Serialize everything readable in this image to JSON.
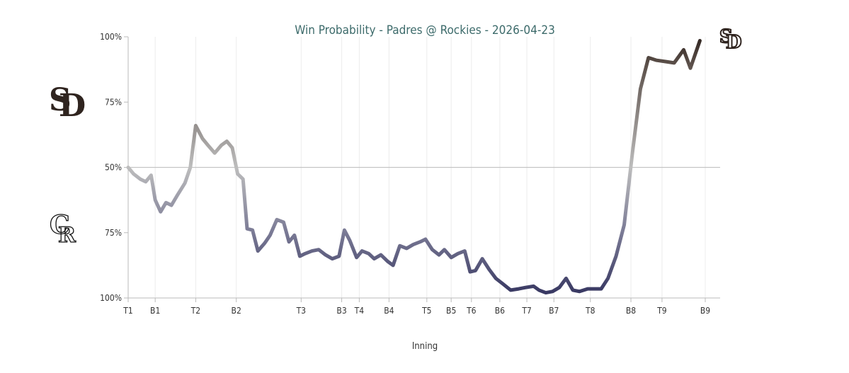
{
  "chart_data": {
    "type": "line",
    "title": "Win Probability - Padres @ Rockies - 2026-04-23",
    "xlabel": "Inning",
    "ylabel": "",
    "grid": true,
    "y_tick_labels": [
      "100%",
      "75%",
      "50%",
      "75%",
      "100%"
    ],
    "x_tick_labels": [
      "T1",
      "B1",
      "T2",
      "B2",
      "T3",
      "B3",
      "T4",
      "B4",
      "T5",
      "B5",
      "T6",
      "B6",
      "T7",
      "B7",
      "T8",
      "B8",
      "T9",
      "B9"
    ],
    "team_labels": {
      "top": "Padres",
      "bottom": "Rockies"
    },
    "logo_text": {
      "top": "SD",
      "bottom": "CR"
    },
    "colors": {
      "title": "#3d6b6b",
      "line_start": "#bdbdbd",
      "line_mid": "#7a7a95",
      "line_low": "#33335e",
      "line_end": "#2f241f",
      "padres_brown": "#2f241f",
      "rockies_black": "#111111"
    },
    "series": [
      {
        "values": [
          [
            0,
            50
          ],
          [
            0.2,
            47.5
          ],
          [
            0.45,
            45.5
          ],
          [
            0.65,
            44.5
          ],
          [
            0.85,
            47
          ],
          [
            1.0,
            37.5
          ],
          [
            1.2,
            33
          ],
          [
            1.4,
            36.5
          ],
          [
            1.6,
            35.5
          ],
          [
            1.8,
            39
          ],
          [
            2.1,
            44
          ],
          [
            2.3,
            50
          ],
          [
            2.5,
            66
          ],
          [
            2.75,
            61
          ],
          [
            2.95,
            58.5
          ],
          [
            3.2,
            55.5
          ],
          [
            3.45,
            58.5
          ],
          [
            3.65,
            60
          ],
          [
            3.85,
            57.5
          ],
          [
            4.05,
            47.5
          ],
          [
            4.25,
            45.5
          ],
          [
            4.4,
            26.5
          ],
          [
            4.6,
            26
          ],
          [
            4.8,
            18
          ],
          [
            5.05,
            21
          ],
          [
            5.25,
            24
          ],
          [
            5.5,
            30
          ],
          [
            5.75,
            29
          ],
          [
            5.95,
            21.5
          ],
          [
            6.15,
            24
          ],
          [
            6.35,
            16
          ],
          [
            6.55,
            17
          ],
          [
            6.8,
            18
          ],
          [
            7.05,
            18.5
          ],
          [
            7.3,
            16.5
          ],
          [
            7.55,
            15
          ],
          [
            7.8,
            16
          ],
          [
            8.0,
            26
          ],
          [
            8.2,
            22
          ],
          [
            8.45,
            15.5
          ],
          [
            8.65,
            18
          ],
          [
            8.9,
            17
          ],
          [
            9.1,
            15
          ],
          [
            9.35,
            16.5
          ],
          [
            9.6,
            14
          ],
          [
            9.8,
            12.5
          ],
          [
            10.05,
            20
          ],
          [
            10.3,
            19
          ],
          [
            10.55,
            20.5
          ],
          [
            10.8,
            21.5
          ],
          [
            11.0,
            22.5
          ],
          [
            11.25,
            18.5
          ],
          [
            11.5,
            16.5
          ],
          [
            11.7,
            18.5
          ],
          [
            11.95,
            15.5
          ],
          [
            12.2,
            17
          ],
          [
            12.45,
            18
          ],
          [
            12.65,
            10
          ],
          [
            12.85,
            10.5
          ],
          [
            13.1,
            15
          ],
          [
            13.35,
            11
          ],
          [
            13.6,
            7.5
          ],
          [
            13.85,
            5.5
          ],
          [
            14.15,
            3
          ],
          [
            14.45,
            3.5
          ],
          [
            14.7,
            4
          ],
          [
            15.0,
            4.5
          ],
          [
            15.2,
            3
          ],
          [
            15.45,
            2
          ],
          [
            15.7,
            2.5
          ],
          [
            15.95,
            4
          ],
          [
            16.2,
            7.5
          ],
          [
            16.45,
            3
          ],
          [
            16.7,
            2.5
          ],
          [
            17.0,
            3.5
          ],
          [
            17.25,
            3.5
          ],
          [
            17.5,
            3.5
          ],
          [
            17.75,
            7.5
          ],
          [
            18.05,
            16
          ],
          [
            18.35,
            28
          ],
          [
            18.65,
            55
          ],
          [
            18.95,
            80
          ],
          [
            19.25,
            92
          ],
          [
            19.55,
            91
          ],
          [
            19.9,
            90.5
          ],
          [
            20.2,
            90
          ],
          [
            20.55,
            95
          ],
          [
            20.8,
            88
          ],
          [
            21.15,
            98.5
          ]
        ]
      }
    ],
    "ylim": [
      0,
      100
    ],
    "xlim": [
      0,
      21.9
    ]
  }
}
